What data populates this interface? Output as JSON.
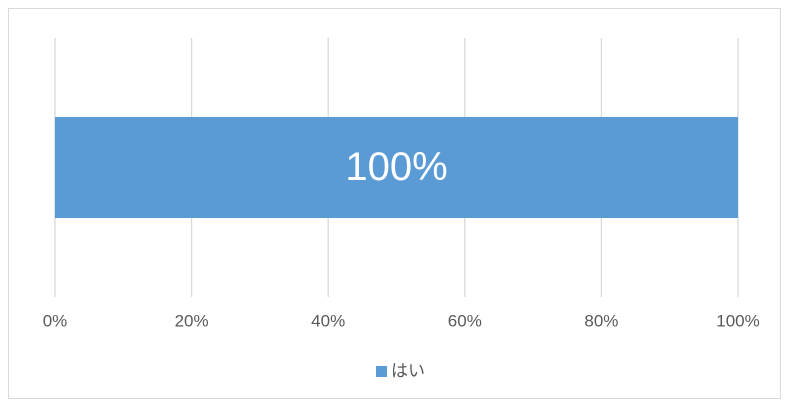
{
  "chart_data": {
    "type": "bar",
    "orientation": "horizontal",
    "stacked": true,
    "categories": [
      null
    ],
    "series": [
      {
        "name": "はい",
        "color": "#5b9bd5",
        "values": [
          100
        ],
        "value_labels": [
          "100%"
        ]
      }
    ],
    "xlim": [
      0,
      100
    ],
    "xticks": [
      {
        "value": 0,
        "label": "0%"
      },
      {
        "value": 20,
        "label": "20%"
      },
      {
        "value": 40,
        "label": "40%"
      },
      {
        "value": 60,
        "label": "60%"
      },
      {
        "value": 80,
        "label": "80%"
      },
      {
        "value": 100,
        "label": "100%"
      }
    ],
    "grid": true,
    "legend": "bottom"
  }
}
